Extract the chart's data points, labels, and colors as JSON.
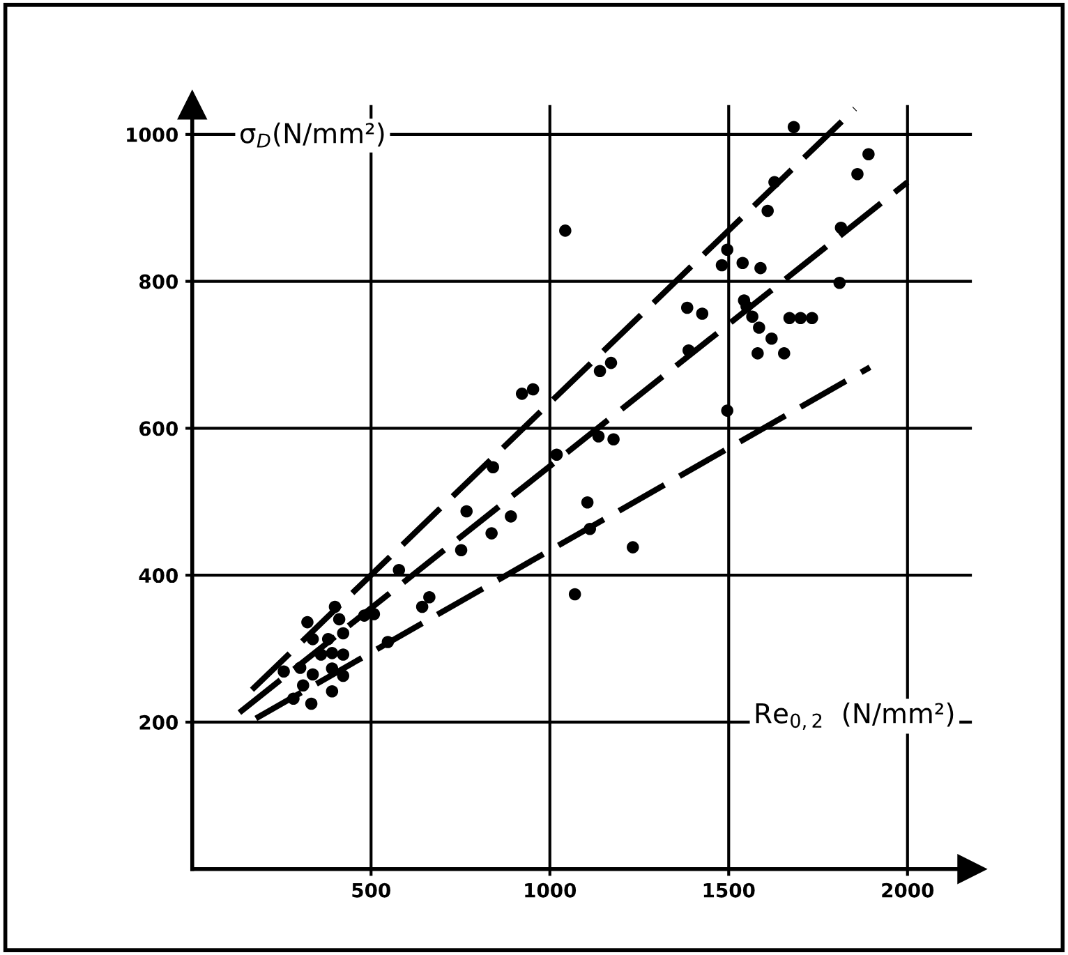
{
  "chart_data": {
    "type": "scatter",
    "xlabel": "Re$_{0,2}$  (N/mm²)",
    "ylabel": "σ$_{D}$(N/mm²)",
    "xlim": [
      0,
      2180
    ],
    "ylim": [
      0,
      1040
    ],
    "xticks": [
      500,
      1000,
      1500,
      2000
    ],
    "yticks": [
      200,
      400,
      600,
      800,
      1000
    ],
    "grid": true,
    "marker": "circle",
    "series": [
      {
        "color": "#000000",
        "x": [
          578,
          767,
          752,
          663,
          643,
          547,
          322,
          399,
          411,
          422,
          508,
          481,
          337,
          380,
          360,
          391,
          422,
          256,
          302,
          337,
          391,
          422,
          310,
          283,
          333,
          391,
          1043,
          1496,
          1481,
          1384,
          1426,
          1388,
          1140,
          1171,
          922,
          953,
          1496,
          1136,
          1178,
          1019,
          841,
          891,
          837,
          1105,
          1112,
          1232,
          1070,
          1891,
          1860,
          1628,
          1609,
          1539,
          1589,
          1814,
          1810,
          1543,
          1550,
          1566,
          1585,
          1620,
          1581,
          1655,
          1670,
          1701,
          1733,
          1682
        ],
        "values": [
          407,
          487,
          434,
          370,
          357,
          309,
          336,
          357,
          340,
          321,
          347,
          345,
          313,
          313,
          292,
          294,
          292,
          269,
          274,
          265,
          273,
          263,
          250,
          232,
          225,
          242,
          869,
          843,
          822,
          764,
          756,
          706,
          678,
          689,
          647,
          653,
          624,
          589,
          585,
          564,
          547,
          480,
          457,
          499,
          463,
          438,
          374,
          973,
          946,
          935,
          896,
          825,
          818,
          873,
          798,
          774,
          766,
          752,
          737,
          722,
          702,
          702,
          750,
          750,
          750,
          1010
        ]
      },
      {
        "type": "line",
        "color": "#000000",
        "line_style": "dashed",
        "marker": "none",
        "x": [
          167,
          1853
        ],
        "values": [
          244,
          1035
        ]
      },
      {
        "type": "line",
        "color": "#000000",
        "line_style": "dashed",
        "marker": "none",
        "x": [
          132,
          2000
        ],
        "values": [
          213,
          935
        ]
      },
      {
        "type": "line",
        "color": "#000000",
        "line_style": "dashed",
        "marker": "none",
        "x": [
          178,
          1895
        ],
        "values": [
          205,
          683
        ]
      }
    ]
  }
}
